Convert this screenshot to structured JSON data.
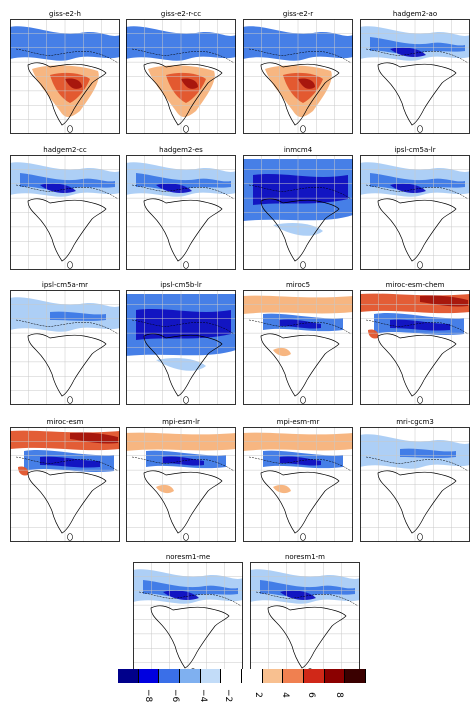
{
  "figure": {
    "panels": [
      {
        "title": "giss-e2-h",
        "pattern": "warm"
      },
      {
        "title": "giss-e2-r-cc",
        "pattern": "warm"
      },
      {
        "title": "giss-e2-r",
        "pattern": "warm"
      },
      {
        "title": "hadgem2-ao",
        "pattern": "cool"
      },
      {
        "title": "hadgem2-cc",
        "pattern": "cool"
      },
      {
        "title": "hadgem2-es",
        "pattern": "cool"
      },
      {
        "title": "inmcm4",
        "pattern": "strongcool"
      },
      {
        "title": "ipsl-cm5a-lr",
        "pattern": "cool"
      },
      {
        "title": "ipsl-cm5a-mr",
        "pattern": "mildcool"
      },
      {
        "title": "ipsl-cm5b-lr",
        "pattern": "strongcool"
      },
      {
        "title": "miroc5",
        "pattern": "mixed"
      },
      {
        "title": "miroc-esm-chem",
        "pattern": "mixedhot"
      },
      {
        "title": "miroc-esm",
        "pattern": "mixedhot"
      },
      {
        "title": "mpi-esm-lr",
        "pattern": "mixed"
      },
      {
        "title": "mpi-esm-mr",
        "pattern": "mixed"
      },
      {
        "title": "mri-cgcm3",
        "pattern": "mildcool"
      },
      {
        "title": "noresm1-me",
        "pattern": "cool"
      },
      {
        "title": "noresm1-m",
        "pattern": "cool"
      }
    ],
    "colorbar": {
      "ticks": [
        "−8",
        "−6",
        "−4",
        "−2",
        "2",
        "4",
        "6",
        "8"
      ],
      "colors": [
        "#00008b",
        "#0000e0",
        "#3a6fe8",
        "#7fb0f0",
        "#c2dcf8",
        "#ffffff",
        "#ffffff",
        "#f8c090",
        "#f08050",
        "#d02818",
        "#8b0000",
        "#3a0000"
      ]
    },
    "palette": {
      "land": "#ffffff",
      "coast": "#000000",
      "grid": "#c8c8c8",
      "blue_dark": "#1010c0",
      "blue_mid": "#3c78e6",
      "blue_light": "#a9ccf5",
      "red_light": "#f7b27a",
      "red_mid": "#e2542b",
      "red_dark": "#a4140c"
    }
  }
}
